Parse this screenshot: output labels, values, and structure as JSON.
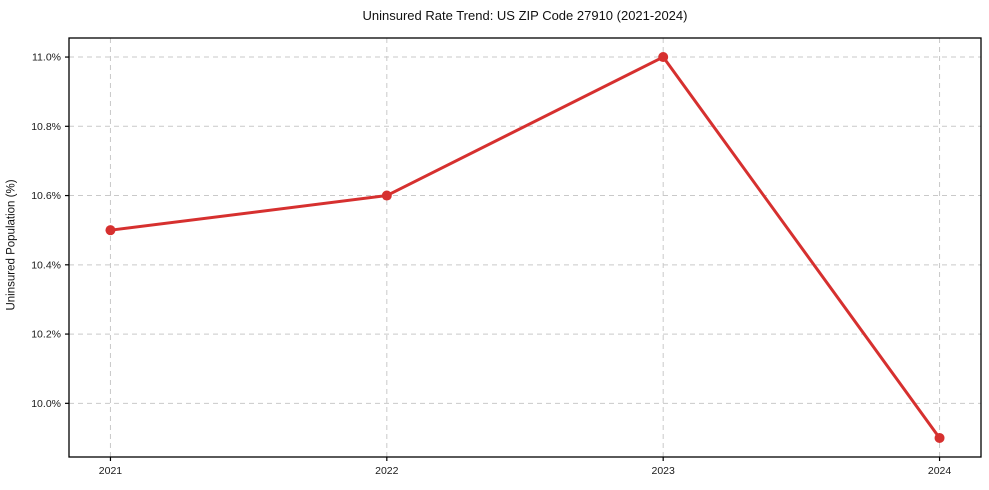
{
  "chart_data": {
    "type": "line",
    "title": "Uninsured Rate Trend: US ZIP Code 27910 (2021-2024)",
    "xlabel": "",
    "ylabel": "Uninsured Population (%)",
    "x": [
      2021,
      2022,
      2023,
      2024
    ],
    "xtick_labels": [
      "2021",
      "2022",
      "2023",
      "2024"
    ],
    "series": [
      {
        "name": "Uninsured Population (%)",
        "values": [
          10.5,
          10.6,
          11.0,
          9.9
        ]
      }
    ],
    "yticks": [
      10.0,
      10.2,
      10.4,
      10.6,
      10.8,
      11.0
    ],
    "ytick_labels": [
      "10.0%",
      "10.2%",
      "10.4%",
      "10.6%",
      "10.8%",
      "11.0%"
    ],
    "xlim": [
      2020.85,
      2024.15
    ],
    "ylim": [
      9.845,
      11.055
    ],
    "grid": true,
    "legend": false,
    "colors": {
      "line": "#d6302f",
      "marker": "#d6302f",
      "grid": "#c9c9c9",
      "spine": "#000000",
      "text": "#1a1a1a",
      "background": "#ffffff"
    }
  }
}
